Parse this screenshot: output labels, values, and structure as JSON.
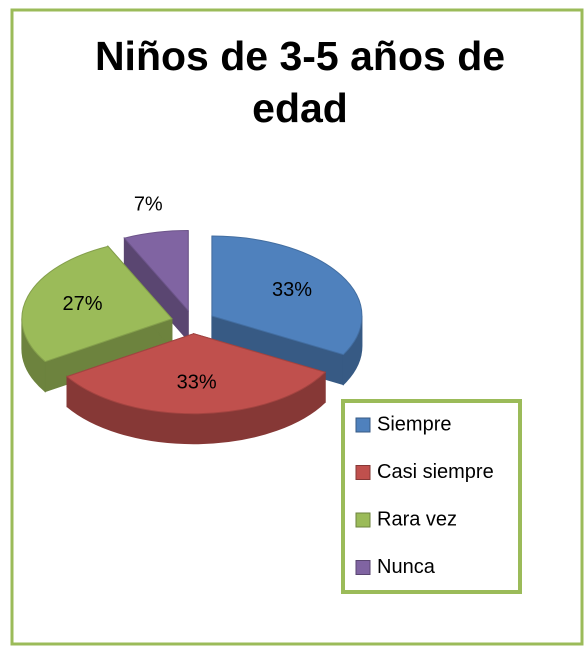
{
  "chart_data": {
    "type": "pie",
    "title": "Niños de 3-5 años de edad",
    "categories": [
      "Siempre",
      "Casi siempre",
      "Rara vez",
      "Nunca"
    ],
    "values": [
      33,
      33,
      27,
      7
    ],
    "value_labels": [
      "33%",
      "33%",
      "27%",
      "7%"
    ],
    "colors": [
      "#4f81bd",
      "#c0504d",
      "#9bbb59",
      "#8064a2"
    ],
    "legend": "right"
  }
}
